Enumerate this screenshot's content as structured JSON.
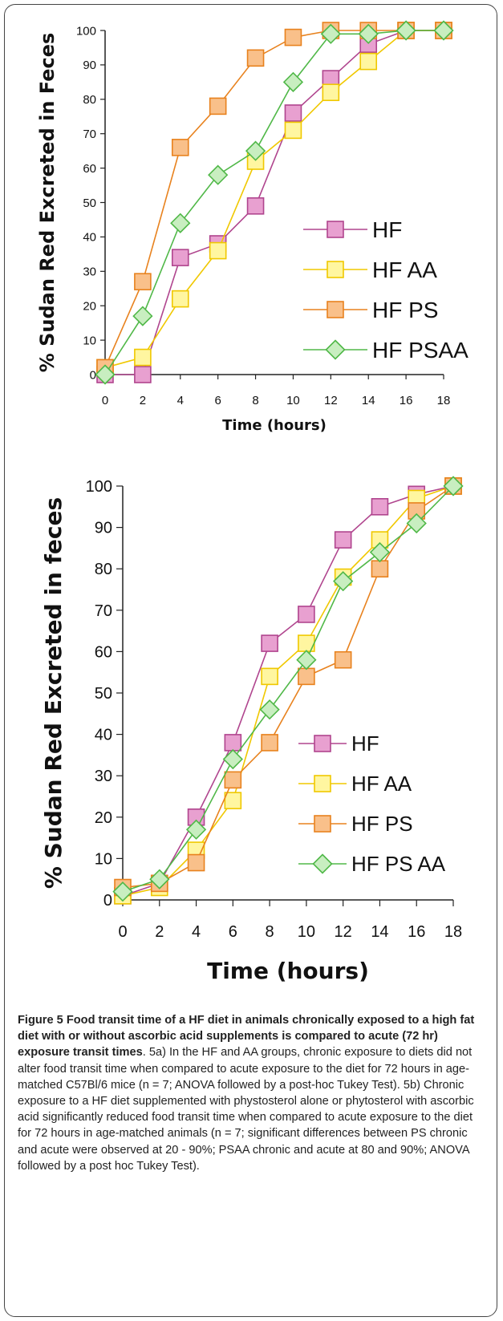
{
  "chart_data": [
    {
      "type": "line",
      "title": "",
      "xlabel": "Time (hours)",
      "ylabel": "% Sudan Red Excreted in Feces",
      "x": [
        0,
        2,
        4,
        6,
        8,
        10,
        12,
        14,
        16,
        18
      ],
      "xticks": [
        "0",
        "2",
        "4",
        "6",
        "8",
        "10",
        "12",
        "14",
        "16",
        "18"
      ],
      "yticks": [
        "0",
        "10",
        "20",
        "30",
        "40",
        "50",
        "60",
        "70",
        "80",
        "90",
        "100"
      ],
      "xlim": [
        0,
        18
      ],
      "ylim": [
        0,
        100
      ],
      "legend_position": "bottom-right",
      "series": [
        {
          "name": "HF",
          "marker": "square",
          "color": "#e8a0d0",
          "stroke": "#b0458e",
          "values": [
            0,
            0,
            34,
            38,
            49,
            76,
            86,
            96,
            100,
            100
          ]
        },
        {
          "name": "HF AA",
          "marker": "square",
          "color": "#fff6a0",
          "stroke": "#f0c800",
          "values": [
            2,
            5,
            22,
            36,
            62,
            71,
            82,
            91,
            100,
            100
          ]
        },
        {
          "name": "HF PS",
          "marker": "square",
          "color": "#f9c08a",
          "stroke": "#e8821e",
          "values": [
            2,
            27,
            66,
            78,
            92,
            98,
            100,
            100,
            100,
            100
          ]
        },
        {
          "name": "HF PSAA",
          "marker": "diamond",
          "color": "#c8eec0",
          "stroke": "#50b848",
          "values": [
            0,
            17,
            44,
            58,
            65,
            85,
            99,
            99,
            100,
            100
          ]
        }
      ]
    },
    {
      "type": "line",
      "title": "",
      "xlabel": "Time (hours)",
      "ylabel": "% Sudan Red Excreted in feces",
      "x": [
        0,
        2,
        4,
        6,
        8,
        10,
        12,
        14,
        16,
        18
      ],
      "xticks": [
        "0",
        "2",
        "4",
        "6",
        "8",
        "10",
        "12",
        "14",
        "16",
        "18"
      ],
      "yticks": [
        "0",
        "10",
        "20",
        "30",
        "40",
        "50",
        "60",
        "70",
        "80",
        "90",
        "100"
      ],
      "xlim": [
        0,
        18
      ],
      "ylim": [
        0,
        100
      ],
      "legend_position": "bottom-right",
      "series": [
        {
          "name": "HF",
          "marker": "square",
          "color": "#e8a0d0",
          "stroke": "#b0458e",
          "values": [
            1,
            4,
            20,
            38,
            62,
            69,
            87,
            95,
            98,
            100
          ]
        },
        {
          "name": "HF AA",
          "marker": "square",
          "color": "#fff6a0",
          "stroke": "#f0c800",
          "values": [
            1,
            3,
            12,
            24,
            54,
            62,
            78,
            87,
            97,
            100
          ]
        },
        {
          "name": "HF PS",
          "marker": "square",
          "color": "#f9c08a",
          "stroke": "#e8821e",
          "values": [
            3,
            4,
            9,
            29,
            38,
            54,
            58,
            80,
            94,
            100
          ]
        },
        {
          "name": "HF PS AA",
          "marker": "diamond",
          "color": "#c8eec0",
          "stroke": "#50b848",
          "values": [
            2,
            5,
            17,
            34,
            46,
            58,
            77,
            84,
            91,
            100
          ]
        }
      ]
    }
  ],
  "caption": {
    "bold": "Figure 5 Food transit time of a HF diet in animals chronically exposed to a high fat diet with or without ascorbic acid supplements is compared to acute (72 hr) exposure transit times",
    "body": ". 5a) In the HF and AA groups, chronic exposure to diets did not alter food transit time when compared to acute exposure to the diet for 72 hours in age-matched C57Bl/6 mice (n = 7; ANOVA followed by a post-hoc Tukey Test). 5b) Chronic exposure to a HF diet supplemented with phystosterol alone or phytosterol with ascorbic acid significantly reduced food transit time when compared to acute exposure to the diet for 72 hours in age-matched animals (n = 7; significant differences between PS chronic and acute were observed at 20 - 90%; PSAA chronic and acute at 80 and 90%; ANOVA followed by a post hoc Tukey Test)."
  }
}
